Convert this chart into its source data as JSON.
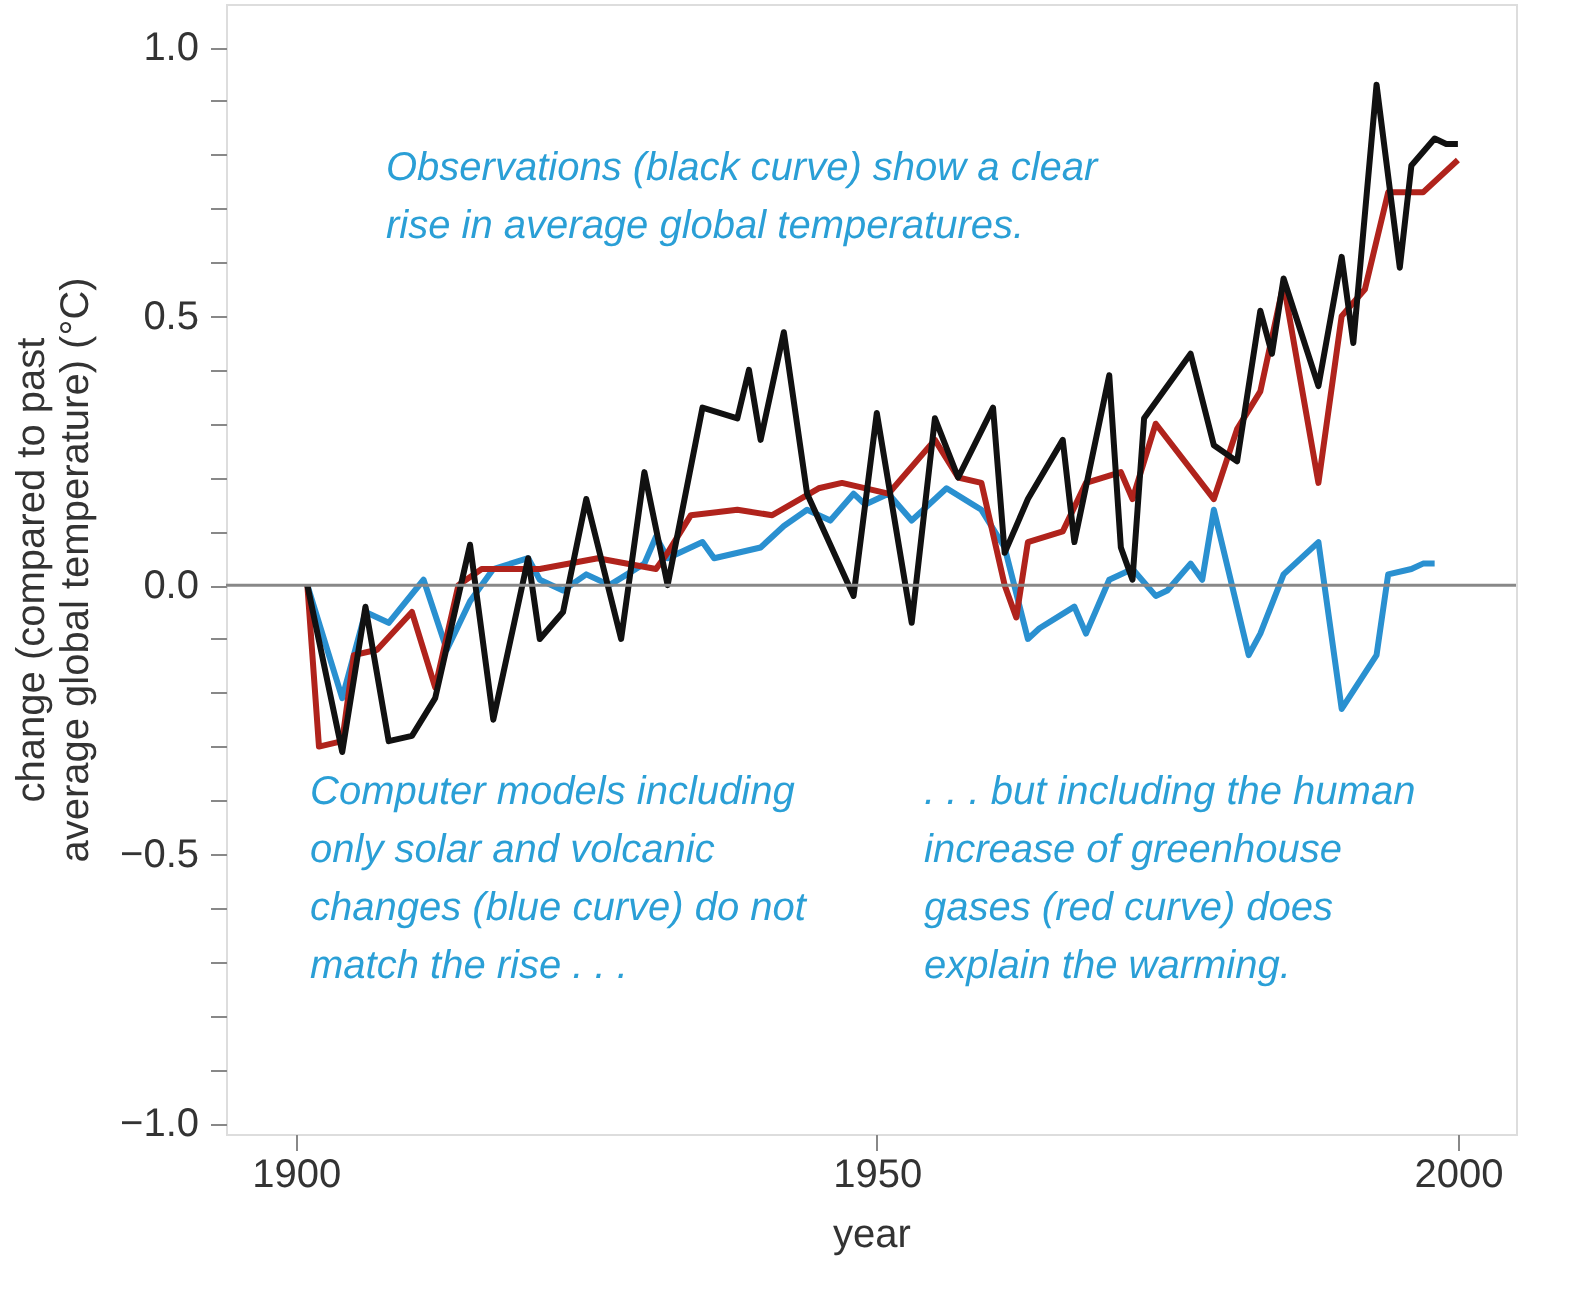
{
  "chart_data": {
    "type": "line",
    "xlabel": "year",
    "ylabel": "change (compared to past\naverage global temperature) (°C)",
    "xlim": [
      1894,
      2005
    ],
    "ylim": [
      -1.02,
      1.08
    ],
    "xticks": [
      1900,
      1950,
      2000
    ],
    "yticks": [
      {
        "value": -1.0,
        "label": "−1.0"
      },
      {
        "value": -0.9,
        "label": null
      },
      {
        "value": -0.8,
        "label": null
      },
      {
        "value": -0.7,
        "label": null
      },
      {
        "value": -0.6,
        "label": null
      },
      {
        "value": -0.5,
        "label": "−0.5"
      },
      {
        "value": -0.4,
        "label": null
      },
      {
        "value": -0.3,
        "label": null
      },
      {
        "value": -0.2,
        "label": null
      },
      {
        "value": -0.1,
        "label": null
      },
      {
        "value": 0.0,
        "label": "0.0"
      },
      {
        "value": 0.1,
        "label": null
      },
      {
        "value": 0.2,
        "label": null
      },
      {
        "value": 0.3,
        "label": null
      },
      {
        "value": 0.4,
        "label": null
      },
      {
        "value": 0.5,
        "label": "0.5"
      },
      {
        "value": 0.6,
        "label": null
      },
      {
        "value": 0.7,
        "label": null
      },
      {
        "value": 0.8,
        "label": null
      },
      {
        "value": 0.9,
        "label": null
      },
      {
        "value": 1.0,
        "label": "1.0"
      }
    ],
    "grid": false,
    "legend": false,
    "ref_lines": [
      {
        "axis": "y",
        "value": 0,
        "color": "#888888"
      }
    ],
    "series": [
      {
        "color": "#2a90d0",
        "x": [
          1901,
          1904,
          1906,
          1908,
          1911,
          1913,
          1915,
          1917,
          1920,
          1921,
          1923,
          1925,
          1927,
          1930,
          1931,
          1932,
          1935,
          1936,
          1940,
          1942,
          1944,
          1946,
          1948,
          1949,
          1951,
          1953,
          1956,
          1959,
          1961,
          1963,
          1964,
          1967,
          1968,
          1970,
          1972,
          1974,
          1975,
          1977,
          1978,
          1979,
          1982,
          1983,
          1985,
          1988,
          1990,
          1993,
          1994,
          1996,
          1997,
          1998
        ],
        "values": [
          0.0,
          -0.21,
          -0.05,
          -0.07,
          0.01,
          -0.12,
          -0.03,
          0.03,
          0.05,
          0.01,
          -0.01,
          0.02,
          0.0,
          0.04,
          0.09,
          0.05,
          0.08,
          0.05,
          0.07,
          0.11,
          0.14,
          0.12,
          0.17,
          0.15,
          0.17,
          0.12,
          0.18,
          0.14,
          0.07,
          -0.1,
          -0.08,
          -0.04,
          -0.09,
          0.01,
          0.03,
          -0.02,
          -0.01,
          0.04,
          0.01,
          0.14,
          -0.13,
          -0.09,
          0.02,
          0.08,
          -0.23,
          -0.13,
          0.02,
          0.03,
          0.04,
          0.04
        ]
      },
      {
        "color": "#b0231c",
        "x": [
          1901,
          1902,
          1904,
          1905,
          1907,
          1910,
          1912,
          1914,
          1916,
          1921,
          1926,
          1931,
          1932,
          1934,
          1938,
          1941,
          1945,
          1947,
          1951,
          1955,
          1957,
          1959,
          1961,
          1962,
          1963,
          1966,
          1968,
          1971,
          1972,
          1974,
          1979,
          1981,
          1983,
          1985,
          1988,
          1990,
          1992,
          1994,
          1997,
          2000
        ],
        "values": [
          0.0,
          -0.3,
          -0.29,
          -0.13,
          -0.12,
          -0.05,
          -0.19,
          0.0,
          0.03,
          0.03,
          0.05,
          0.03,
          0.06,
          0.13,
          0.14,
          0.13,
          0.18,
          0.19,
          0.17,
          0.27,
          0.2,
          0.19,
          0.0,
          -0.06,
          0.08,
          0.1,
          0.19,
          0.21,
          0.16,
          0.3,
          0.16,
          0.29,
          0.36,
          0.56,
          0.19,
          0.5,
          0.55,
          0.73,
          0.73,
          0.79
        ]
      },
      {
        "color": "#111111",
        "x": [
          1901,
          1904,
          1906,
          1908,
          1910,
          1912,
          1915,
          1917,
          1920,
          1921,
          1923,
          1925,
          1928,
          1930,
          1932,
          1935,
          1938,
          1939,
          1940,
          1942,
          1944,
          1948,
          1950,
          1953,
          1955,
          1957,
          1960,
          1961,
          1963,
          1966,
          1967,
          1970,
          1971,
          1972,
          1973,
          1977,
          1979,
          1981,
          1983,
          1984,
          1985,
          1988,
          1990,
          1991,
          1993,
          1995,
          1996,
          1998,
          1999,
          2000
        ],
        "values": [
          0.0,
          -0.31,
          -0.04,
          -0.29,
          -0.28,
          -0.21,
          0.075,
          -0.25,
          0.05,
          -0.1,
          -0.05,
          0.16,
          -0.1,
          0.21,
          0.0,
          0.33,
          0.31,
          0.4,
          0.27,
          0.47,
          0.17,
          -0.02,
          0.32,
          -0.07,
          0.31,
          0.2,
          0.33,
          0.06,
          0.16,
          0.27,
          0.08,
          0.39,
          0.07,
          0.01,
          0.31,
          0.43,
          0.26,
          0.23,
          0.51,
          0.43,
          0.57,
          0.37,
          0.61,
          0.45,
          0.93,
          0.59,
          0.78,
          0.83,
          0.82,
          0.82
        ]
      }
    ],
    "annotations": [
      "Observations (black curve) show a clear\nrise in average global temperatures.",
      "Computer models including\nonly solar and volcanic\nchanges (blue curve) do not\nmatch the rise . . .",
      ". . . but including the human\nincrease of greenhouse\ngases (red curve) does\nexplain the warming."
    ]
  }
}
